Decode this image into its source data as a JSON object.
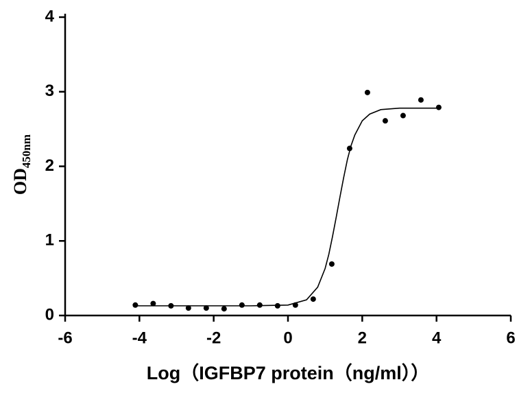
{
  "chart_data": {
    "type": "scatter",
    "xlabel": "Log（IGFBP7 protein（ng/ml））",
    "ylabel": "OD",
    "ylabel_sub": "450nm",
    "xlim": [
      -6,
      6
    ],
    "xticks": [
      -6,
      -4,
      -2,
      0,
      2,
      4,
      6
    ],
    "ylim": [
      0,
      4
    ],
    "yticks": [
      0,
      1,
      2,
      3,
      4
    ],
    "color": "#000000",
    "points": {
      "x": [
        -4.11,
        -3.63,
        -3.15,
        -2.68,
        -2.2,
        -1.72,
        -1.24,
        -0.76,
        -0.28,
        0.2,
        0.68,
        1.18,
        1.66,
        2.14,
        2.62,
        3.1,
        3.58,
        4.06
      ],
      "y": [
        0.14,
        0.16,
        0.13,
        0.1,
        0.1,
        0.09,
        0.14,
        0.14,
        0.13,
        0.14,
        0.22,
        0.69,
        2.24,
        2.99,
        2.61,
        2.68,
        2.89,
        2.79
      ]
    },
    "fit": {
      "x": [
        -4.11,
        -3,
        -2,
        -1,
        0,
        0.5,
        0.8,
        1,
        1.1,
        1.2,
        1.3,
        1.4,
        1.5,
        1.6,
        1.7,
        1.8,
        2,
        2.2,
        2.5,
        3,
        4.06
      ],
      "y": [
        0.13,
        0.13,
        0.13,
        0.13,
        0.14,
        0.21,
        0.38,
        0.63,
        0.82,
        1.06,
        1.32,
        1.59,
        1.85,
        2.09,
        2.28,
        2.42,
        2.61,
        2.7,
        2.76,
        2.78,
        2.78
      ]
    }
  }
}
